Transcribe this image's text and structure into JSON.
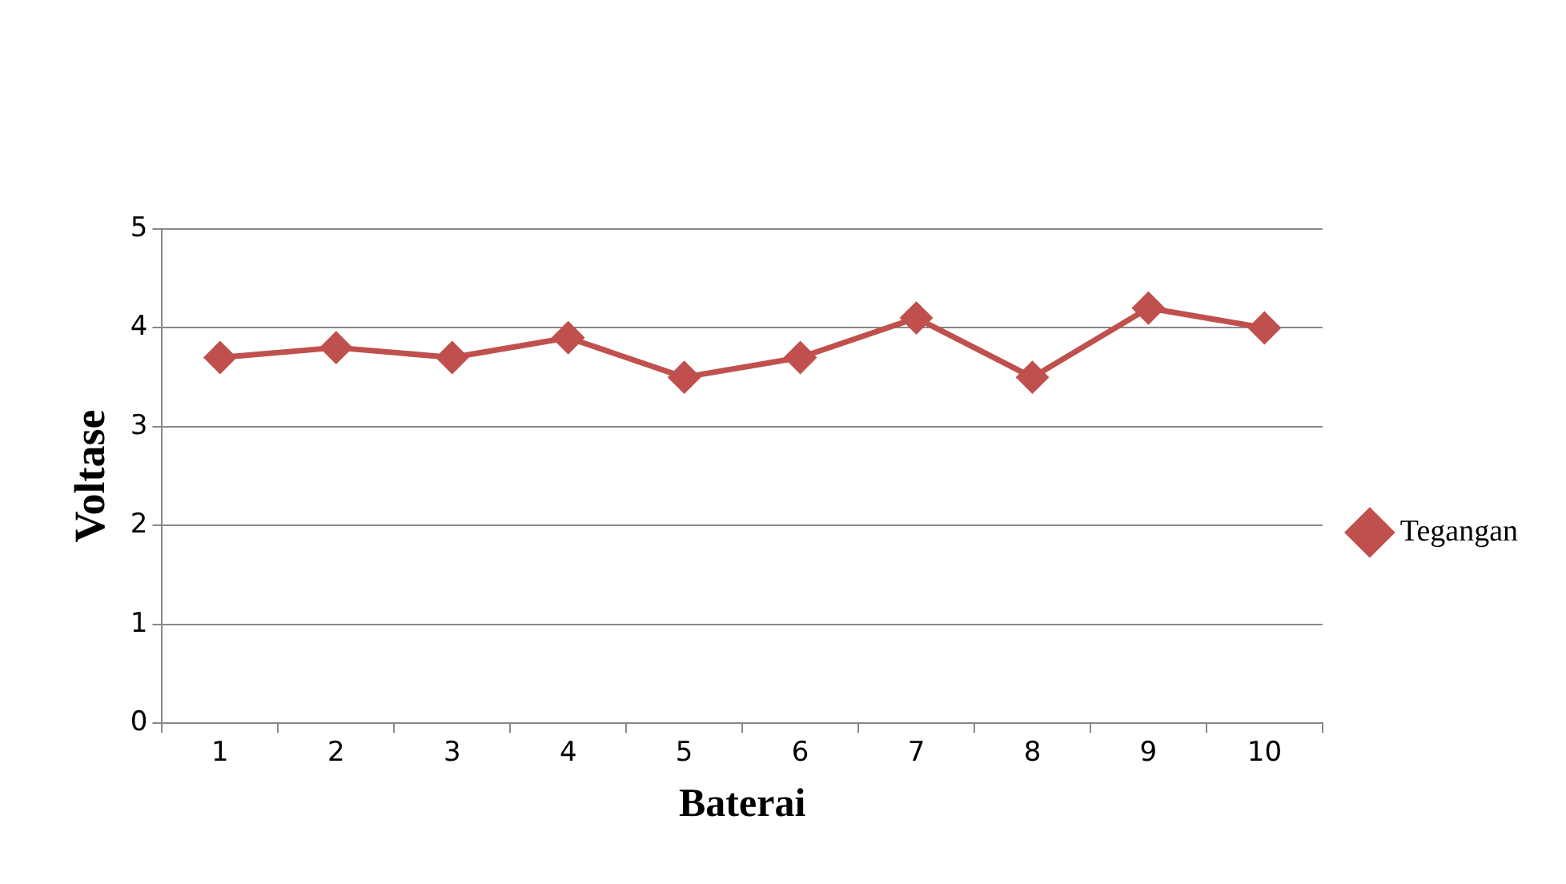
{
  "chart_data": {
    "type": "line",
    "xlabel": "Baterai",
    "ylabel": "Voltase",
    "categories": [
      "1",
      "2",
      "3",
      "4",
      "5",
      "6",
      "7",
      "8",
      "9",
      "10"
    ],
    "series": [
      {
        "name": "Tegangan",
        "color": "#c0504d",
        "values": [
          3.7,
          3.8,
          3.7,
          3.9,
          3.5,
          3.7,
          4.1,
          3.5,
          4.2,
          4.0
        ]
      }
    ],
    "ylim": [
      0,
      5
    ],
    "yticks": [
      0,
      1,
      2,
      3,
      4,
      5
    ],
    "grid": "y",
    "legend": "right",
    "marker": "diamond",
    "line_style": "solid"
  }
}
